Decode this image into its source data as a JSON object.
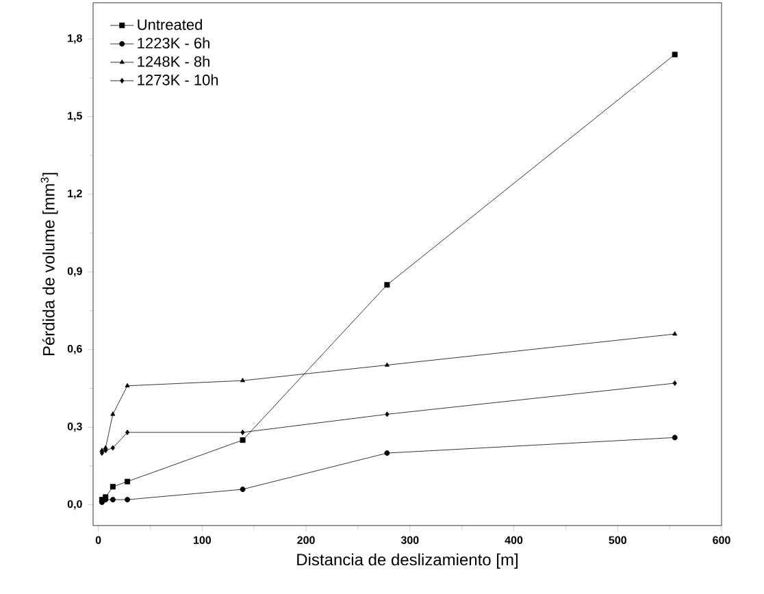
{
  "chart_data": {
    "type": "line",
    "xlabel": "Distancia de deslizamiento [m]",
    "ylabel": "Pérdida de volume [mm$^{3}$]",
    "xlim": [
      -5,
      600
    ],
    "ylim": [
      -0.08,
      1.94
    ],
    "xticks": [
      0,
      100,
      200,
      300,
      400,
      500,
      600
    ],
    "yticks": [
      {
        "value": 0,
        "label": "0,0"
      },
      {
        "value": 0.3,
        "label": "0,3"
      },
      {
        "value": 0.6,
        "label": "0,6"
      },
      {
        "value": 0.9,
        "label": "0,9"
      },
      {
        "value": 1.2,
        "label": "1,2"
      },
      {
        "value": 1.5,
        "label": "1,5"
      },
      {
        "value": 1.8,
        "label": "1,8"
      }
    ],
    "x": [
      3.5,
      7,
      14,
      28,
      139,
      278,
      555
    ],
    "legend": "top left",
    "grid": false,
    "line_style": "solid",
    "series": [
      {
        "name": "Untreated",
        "color": "#000000",
        "marker": "square",
        "values": [
          0.02,
          0.03,
          0.07,
          0.09,
          0.25,
          0.85,
          1.74
        ]
      },
      {
        "name": "1223K - 6h",
        "color": "#000000",
        "marker": "circle",
        "values": [
          0.01,
          0.02,
          0.02,
          0.02,
          0.06,
          0.2,
          0.26
        ]
      },
      {
        "name": "1248K - 8h",
        "color": "#000000",
        "marker": "triangle",
        "values": [
          0.21,
          0.22,
          0.35,
          0.46,
          0.48,
          0.54,
          0.66
        ]
      },
      {
        "name": "1273K - 10h",
        "color": "#000000",
        "marker": "diamond",
        "values": [
          0.2,
          0.21,
          0.22,
          0.28,
          0.28,
          0.35,
          0.47
        ]
      }
    ]
  }
}
